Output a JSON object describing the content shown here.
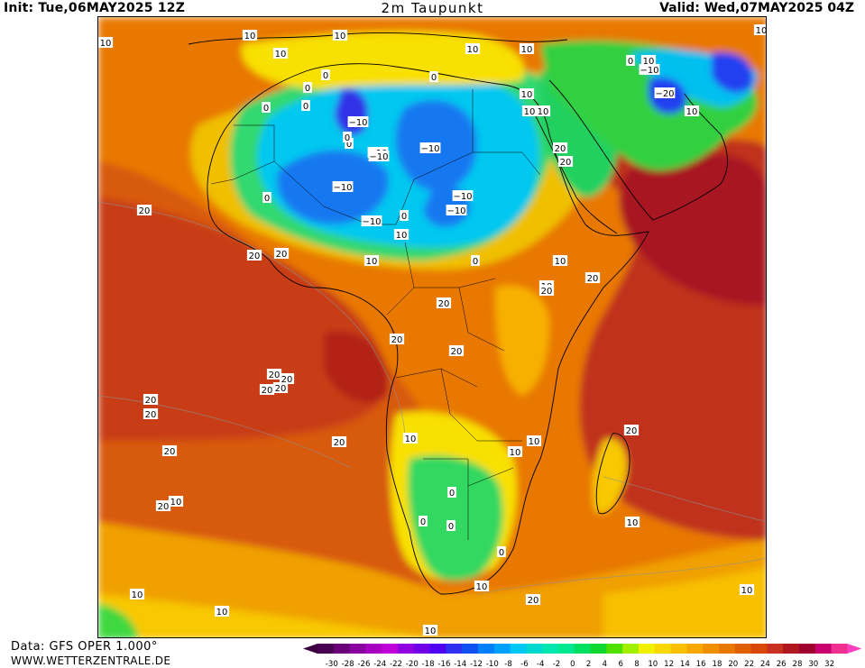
{
  "header": {
    "init": "Init: Tue,06MAY2025 12Z",
    "title": "2m Taupunkt",
    "valid": "Valid: Wed,07MAY2025 04Z"
  },
  "footer": {
    "source": "Data: GFS OPER 1.000°",
    "website": "WWW.WETTERZENTRALE.DE"
  },
  "colorbar": {
    "ticks": [
      "-30",
      "-28",
      "-26",
      "-24",
      "-22",
      "-20",
      "-18",
      "-16",
      "-14",
      "-12",
      "-10",
      "-8",
      "-6",
      "-4",
      "-2",
      "0",
      "2",
      "4",
      "6",
      "8",
      "10",
      "12",
      "14",
      "16",
      "18",
      "20",
      "22",
      "24",
      "26",
      "28",
      "30",
      "32"
    ],
    "colors": [
      "#4a0050",
      "#6a0078",
      "#8a00a0",
      "#a800c0",
      "#c000d8",
      "#9000e0",
      "#7000e8",
      "#5000f0",
      "#3030f0",
      "#1050f0",
      "#0080f8",
      "#00a0ff",
      "#00c8f8",
      "#00d8d0",
      "#00e8b0",
      "#00e890",
      "#00e060",
      "#10d830",
      "#50e000",
      "#a0f000",
      "#f0f000",
      "#f8d800",
      "#f8c000",
      "#f8a800",
      "#f09000",
      "#e87800",
      "#e06000",
      "#d84800",
      "#c83020",
      "#b01820",
      "#a00030",
      "#c80070",
      "#f03090"
    ],
    "under_color": "#3a0040",
    "over_color": "#ff40c0"
  },
  "contour_labels": [
    {
      "t": "10"
    },
    {
      "t": "10"
    },
    {
      "t": "10"
    },
    {
      "t": "10"
    },
    {
      "t": "10"
    },
    {
      "t": "10"
    },
    {
      "t": "10"
    },
    {
      "t": "10"
    },
    {
      "t": "0"
    },
    {
      "t": "0"
    },
    {
      "t": "0"
    },
    {
      "t": "0"
    },
    {
      "t": "0"
    },
    {
      "t": "0"
    },
    {
      "t": "0"
    },
    {
      "t": "−10"
    },
    {
      "t": "−10"
    },
    {
      "t": "−20"
    },
    {
      "t": "10"
    },
    {
      "t": "0"
    },
    {
      "t": "−10"
    },
    {
      "t": "−10"
    },
    {
      "t": "−10"
    },
    {
      "t": "−10"
    },
    {
      "t": "−10"
    },
    {
      "t": "−10"
    },
    {
      "t": "−10"
    },
    {
      "t": "0"
    },
    {
      "t": "0"
    },
    {
      "t": "0"
    },
    {
      "t": "10"
    },
    {
      "t": "10"
    },
    {
      "t": "10"
    },
    {
      "t": "20"
    },
    {
      "t": "20"
    },
    {
      "t": "10"
    },
    {
      "t": "10"
    },
    {
      "t": "20"
    },
    {
      "t": "20"
    },
    {
      "t": "20"
    },
    {
      "t": "10"
    },
    {
      "t": "10"
    },
    {
      "t": "20"
    },
    {
      "t": "20"
    },
    {
      "t": "20"
    },
    {
      "t": "20"
    },
    {
      "t": "20"
    },
    {
      "t": "20"
    },
    {
      "t": "20"
    },
    {
      "t": "20"
    },
    {
      "t": "20"
    },
    {
      "t": "20"
    },
    {
      "t": "20"
    },
    {
      "t": "20"
    },
    {
      "t": "20"
    },
    {
      "t": "20"
    },
    {
      "t": "10"
    },
    {
      "t": "10"
    },
    {
      "t": "10"
    },
    {
      "t": "20"
    },
    {
      "t": "10"
    },
    {
      "t": "0"
    },
    {
      "t": "0"
    },
    {
      "t": "0"
    },
    {
      "t": "0"
    },
    {
      "t": "10"
    },
    {
      "t": "20"
    },
    {
      "t": "10"
    },
    {
      "t": "10"
    },
    {
      "t": "10"
    },
    {
      "t": "10"
    },
    {
      "t": "10"
    }
  ]
}
